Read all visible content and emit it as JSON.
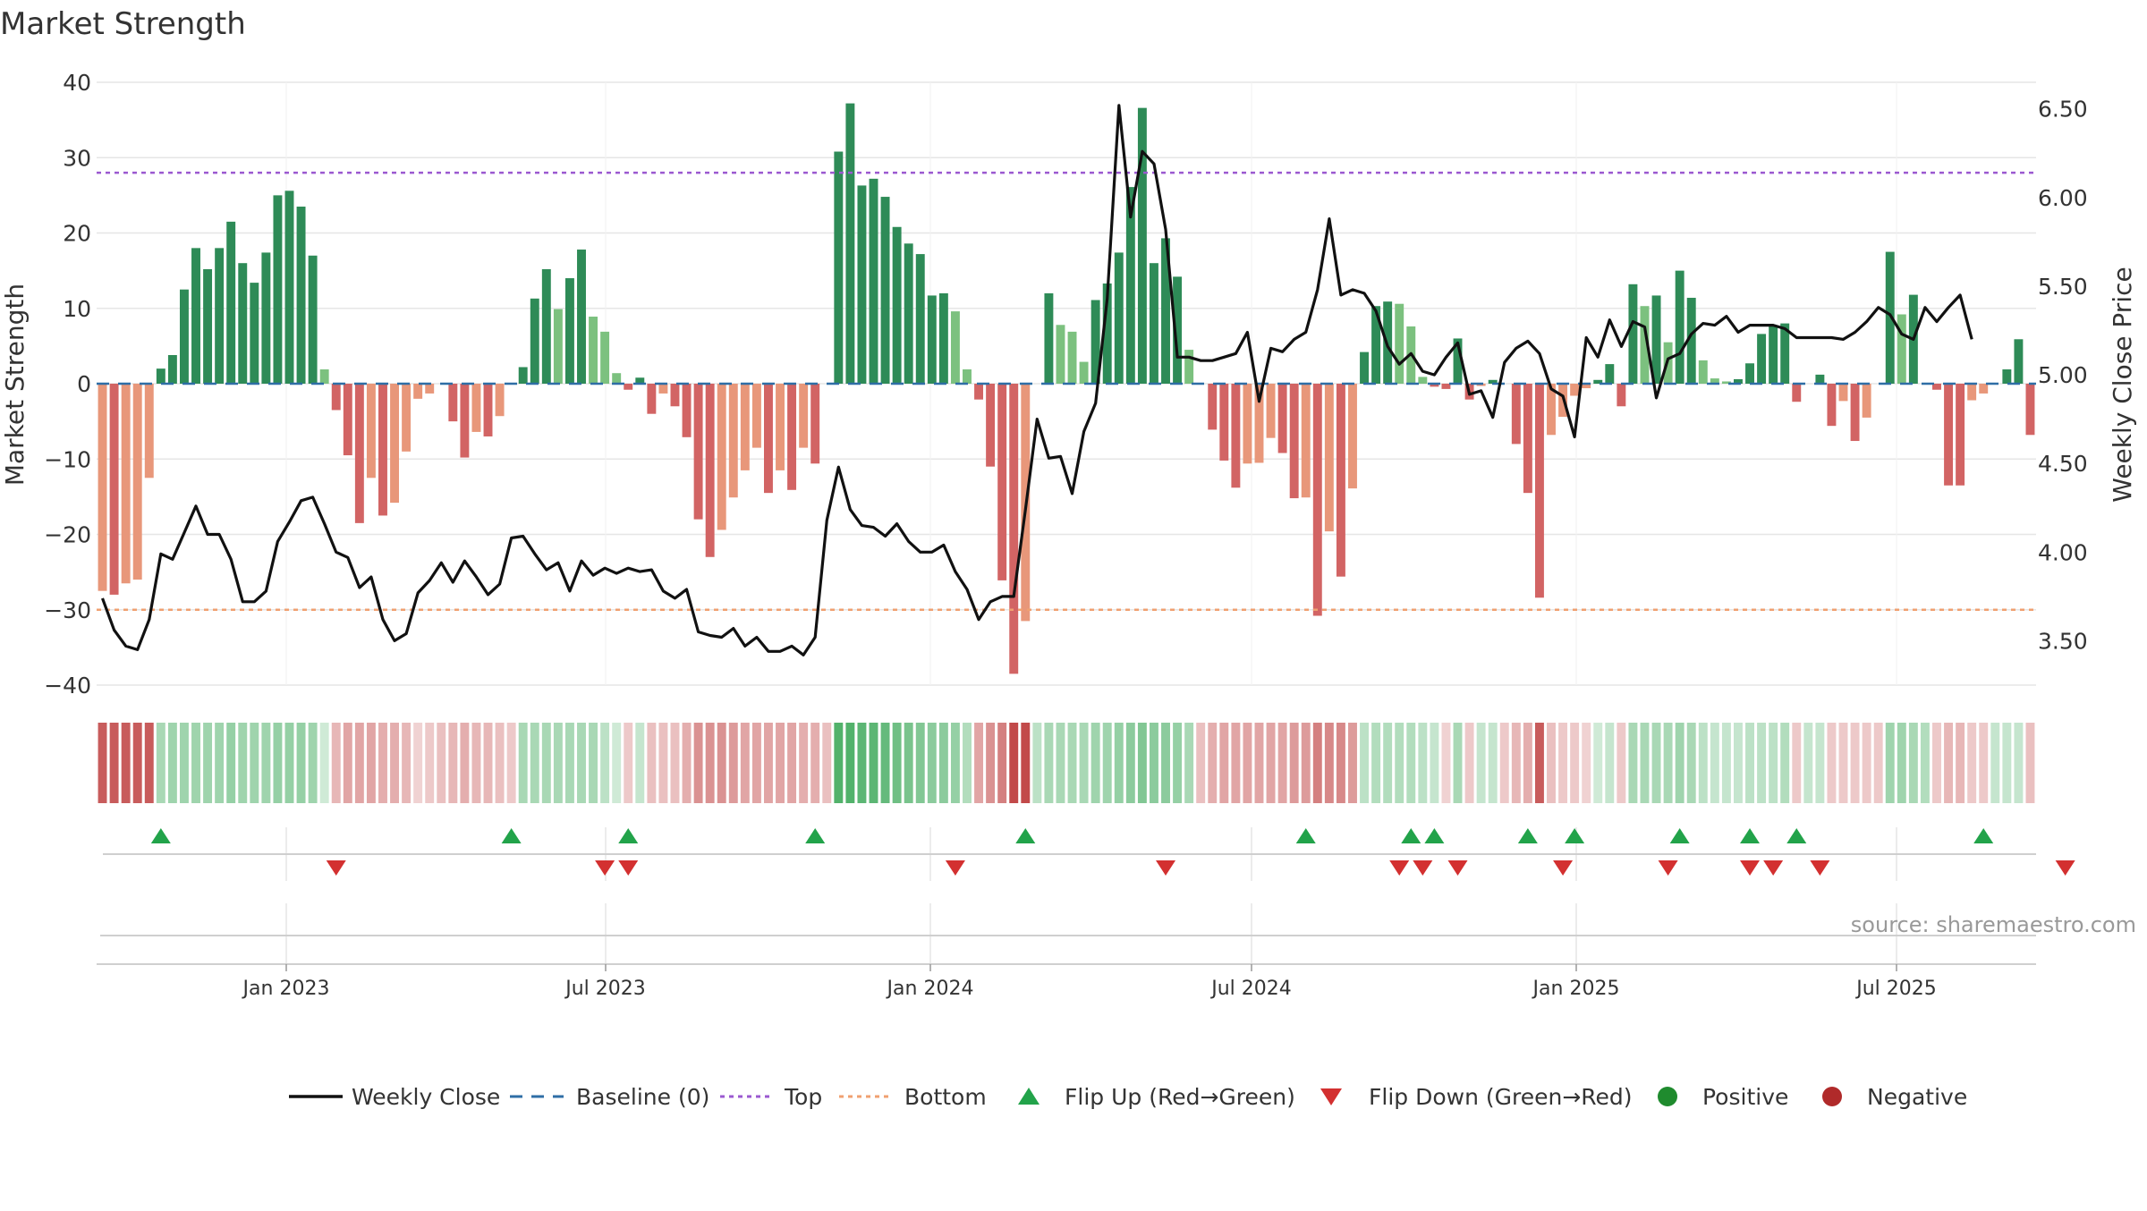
{
  "title": "Market Strength",
  "source": "source: sharemaestro.com",
  "colors": {
    "strong_pos": "#2e8b57",
    "weak_pos": "#7cc17f",
    "strong_neg": "#d26464",
    "weak_neg": "#e8977a",
    "price_line": "#111111",
    "baseline": "#2f6ea6",
    "top_line": "#9b59d0",
    "bottom_line": "#f0a070",
    "flip_up": "#22a34a",
    "flip_down": "#d33030",
    "positive": "#1f8b2e",
    "negative": "#b02a2a",
    "grid": "#e6e6e6"
  },
  "chart_data": {
    "type": "bar",
    "title": "Market Strength",
    "ylabel": "Market Strength",
    "y2label": "Weekly Close Price",
    "ylim": [
      -40,
      40
    ],
    "y2lim": [
      3.25,
      6.65
    ],
    "yticks": [
      "40",
      "30",
      "20",
      "10",
      "0",
      "−10",
      "−20",
      "−30",
      "−40"
    ],
    "y2ticks": [
      "6.50",
      "6.00",
      "5.50",
      "5.00",
      "4.50",
      "4.00",
      "3.50"
    ],
    "xticks": [
      "Jan 2023",
      "Jul 2023",
      "Jan 2024",
      "Jul 2024",
      "Jan 2025",
      "Jul 2025"
    ],
    "top_level": 28,
    "bottom_level": -30,
    "strength": [
      -27.5,
      -28,
      -26.5,
      -26,
      -12.5,
      2,
      3.8,
      12.5,
      18,
      15.2,
      18,
      21.5,
      16,
      13.4,
      17.4,
      25,
      25.6,
      23.5,
      17,
      1.9,
      -3.5,
      -9.5,
      -18.5,
      -12.5,
      -17.5,
      -15.8,
      -9,
      -2,
      -1.3,
      0,
      -5,
      -9.8,
      -6.4,
      -7,
      -4.3,
      0,
      2.2,
      11.3,
      15.2,
      9.9,
      14,
      17.8,
      8.9,
      6.9,
      1.4,
      -0.8,
      0.8,
      -4,
      -1.3,
      -3,
      -7.1,
      -18,
      -23,
      -19.4,
      -15.1,
      -11.5,
      -8.5,
      -14.5,
      -11.5,
      -14.1,
      -8.5,
      -10.6,
      0,
      30.8,
      37.2,
      26.3,
      27.2,
      24.8,
      20.8,
      18.6,
      17.2,
      11.7,
      12,
      9.6,
      1.9,
      -2.1,
      -11,
      -26.1,
      -38.5,
      -31.5,
      0,
      12,
      7.8,
      6.9,
      2.9,
      11.1,
      13.3,
      17.4,
      26.1,
      36.6,
      16,
      19.3,
      14.2,
      4.5,
      0,
      -6.1,
      -10.2,
      -13.8,
      -10.6,
      -10.5,
      -7.2,
      -9.2,
      -15.2,
      -15.1,
      -30.8,
      -19.6,
      -25.6,
      -13.9,
      4.2,
      10.3,
      10.9,
      10.6,
      7.6,
      0.9,
      -0.4,
      -0.7,
      6,
      -2.1,
      -0.3,
      0.5,
      0,
      -8,
      -14.5,
      -28.4,
      -6.8,
      -4.4,
      -1.6,
      -0.6,
      0.5,
      2.6,
      -3,
      13.2,
      10.3,
      11.7,
      5.5,
      15,
      11.4,
      3.1,
      0.7,
      0.3,
      0.6,
      2.7,
      6.6,
      7.6,
      8,
      -2.4,
      0,
      1.2,
      -5.6,
      -2.3,
      -7.6,
      -4.5,
      0,
      17.5,
      9.2,
      11.8,
      0,
      -0.8,
      -13.5,
      -13.5,
      -2.2,
      -1.3,
      0,
      1.9,
      5.9,
      -6.8
    ],
    "weekly_close": [
      3.74,
      3.56,
      3.47,
      3.45,
      3.62,
      3.99,
      3.96,
      4.11,
      4.26,
      4.1,
      4.1,
      3.96,
      3.72,
      3.72,
      3.78,
      4.06,
      4.17,
      4.29,
      4.31,
      4.16,
      4.0,
      3.97,
      3.8,
      3.86,
      3.62,
      3.5,
      3.54,
      3.77,
      3.84,
      3.94,
      3.83,
      3.95,
      3.86,
      3.76,
      3.82,
      4.08,
      4.09,
      3.99,
      3.9,
      3.94,
      3.78,
      3.95,
      3.87,
      3.91,
      3.88,
      3.91,
      3.89,
      3.9,
      3.78,
      3.74,
      3.79,
      3.55,
      3.53,
      3.52,
      3.57,
      3.47,
      3.52,
      3.44,
      3.44,
      3.47,
      3.42,
      3.52,
      4.18,
      4.48,
      4.24,
      4.15,
      4.14,
      4.09,
      4.16,
      4.06,
      4.0,
      4.0,
      4.04,
      3.89,
      3.79,
      3.62,
      3.72,
      3.75,
      3.75,
      4.24,
      4.75,
      4.53,
      4.54,
      4.33,
      4.68,
      4.84,
      5.43,
      6.52,
      5.89,
      6.26,
      6.19,
      5.82,
      5.1,
      5.1,
      5.08,
      5.08,
      5.1,
      5.12,
      5.24,
      4.85,
      5.15,
      5.13,
      5.2,
      5.24,
      5.48,
      5.88,
      5.45,
      5.48,
      5.46,
      5.36,
      5.16,
      5.06,
      5.12,
      5.02,
      5.0,
      5.1,
      5.18,
      4.89,
      4.91,
      4.76,
      5.07,
      5.15,
      5.19,
      5.12,
      4.92,
      4.88,
      4.65,
      5.21,
      5.1,
      5.31,
      5.16,
      5.3,
      5.27,
      4.87,
      5.09,
      5.12,
      5.23,
      5.29,
      5.28,
      5.33,
      5.24,
      5.28,
      5.28,
      5.28,
      5.26,
      5.21,
      5.21,
      5.21,
      5.21,
      5.2,
      5.24,
      5.3,
      5.38,
      5.34,
      5.23,
      5.2,
      5.38,
      5.3,
      5.38,
      5.45,
      5.2
    ],
    "strength_band": [
      -0.9,
      -0.9,
      -0.9,
      -0.9,
      -0.9,
      0.45,
      0.5,
      0.5,
      0.5,
      0.5,
      0.5,
      0.55,
      0.5,
      0.5,
      0.5,
      0.55,
      0.55,
      0.55,
      0.5,
      0.25,
      -0.4,
      -0.5,
      -0.5,
      -0.5,
      -0.45,
      -0.45,
      -0.4,
      -0.25,
      -0.3,
      -0.35,
      -0.4,
      -0.45,
      -0.4,
      -0.4,
      -0.35,
      -0.3,
      0.45,
      0.45,
      0.45,
      0.45,
      0.45,
      0.45,
      0.45,
      0.35,
      0.25,
      -0.3,
      0.3,
      -0.35,
      -0.35,
      -0.35,
      -0.45,
      -0.6,
      -0.6,
      -0.6,
      -0.55,
      -0.5,
      -0.5,
      -0.5,
      -0.5,
      -0.5,
      -0.45,
      -0.45,
      -0.35,
      0.9,
      0.9,
      0.85,
      0.85,
      0.8,
      0.75,
      0.7,
      0.65,
      0.6,
      0.6,
      0.55,
      0.4,
      -0.5,
      -0.6,
      -0.7,
      -1,
      -1,
      0.35,
      0.45,
      0.45,
      0.45,
      0.45,
      0.5,
      0.5,
      0.55,
      0.6,
      0.65,
      0.6,
      0.6,
      0.55,
      0.45,
      -0.35,
      -0.45,
      -0.5,
      -0.5,
      -0.5,
      -0.5,
      -0.5,
      -0.5,
      -0.55,
      -0.55,
      -0.7,
      -0.65,
      -0.65,
      -0.55,
      0.35,
      0.4,
      0.4,
      0.4,
      0.4,
      0.35,
      0.3,
      -0.25,
      0.45,
      -0.3,
      0.3,
      0.3,
      -0.3,
      -0.4,
      -0.45,
      -0.9,
      -0.35,
      -0.3,
      -0.3,
      -0.25,
      0.25,
      0.3,
      -0.3,
      0.45,
      0.45,
      0.45,
      0.45,
      0.5,
      0.45,
      0.35,
      0.3,
      0.3,
      0.3,
      0.35,
      0.35,
      0.35,
      0.4,
      -0.3,
      0.3,
      0.3,
      -0.3,
      -0.3,
      -0.3,
      -0.3,
      -0.3,
      0.5,
      0.5,
      0.45,
      0.4,
      -0.3,
      -0.4,
      -0.4,
      -0.3,
      -0.3,
      0.3,
      0.3,
      0.3,
      -0.35
    ],
    "flip_up_weeks": [
      5,
      35,
      45,
      61,
      79,
      103,
      112,
      114,
      122,
      126,
      135,
      141,
      145,
      161
    ],
    "flip_down_weeks": [
      20,
      43,
      45,
      73,
      91,
      111,
      113,
      116,
      125,
      134,
      141,
      143,
      147,
      168
    ],
    "legend": [
      "Weekly Close",
      "Baseline (0)",
      "Top",
      "Bottom",
      "Flip Up (Red→Green)",
      "Flip Down (Green→Red)",
      "Positive",
      "Negative"
    ]
  }
}
